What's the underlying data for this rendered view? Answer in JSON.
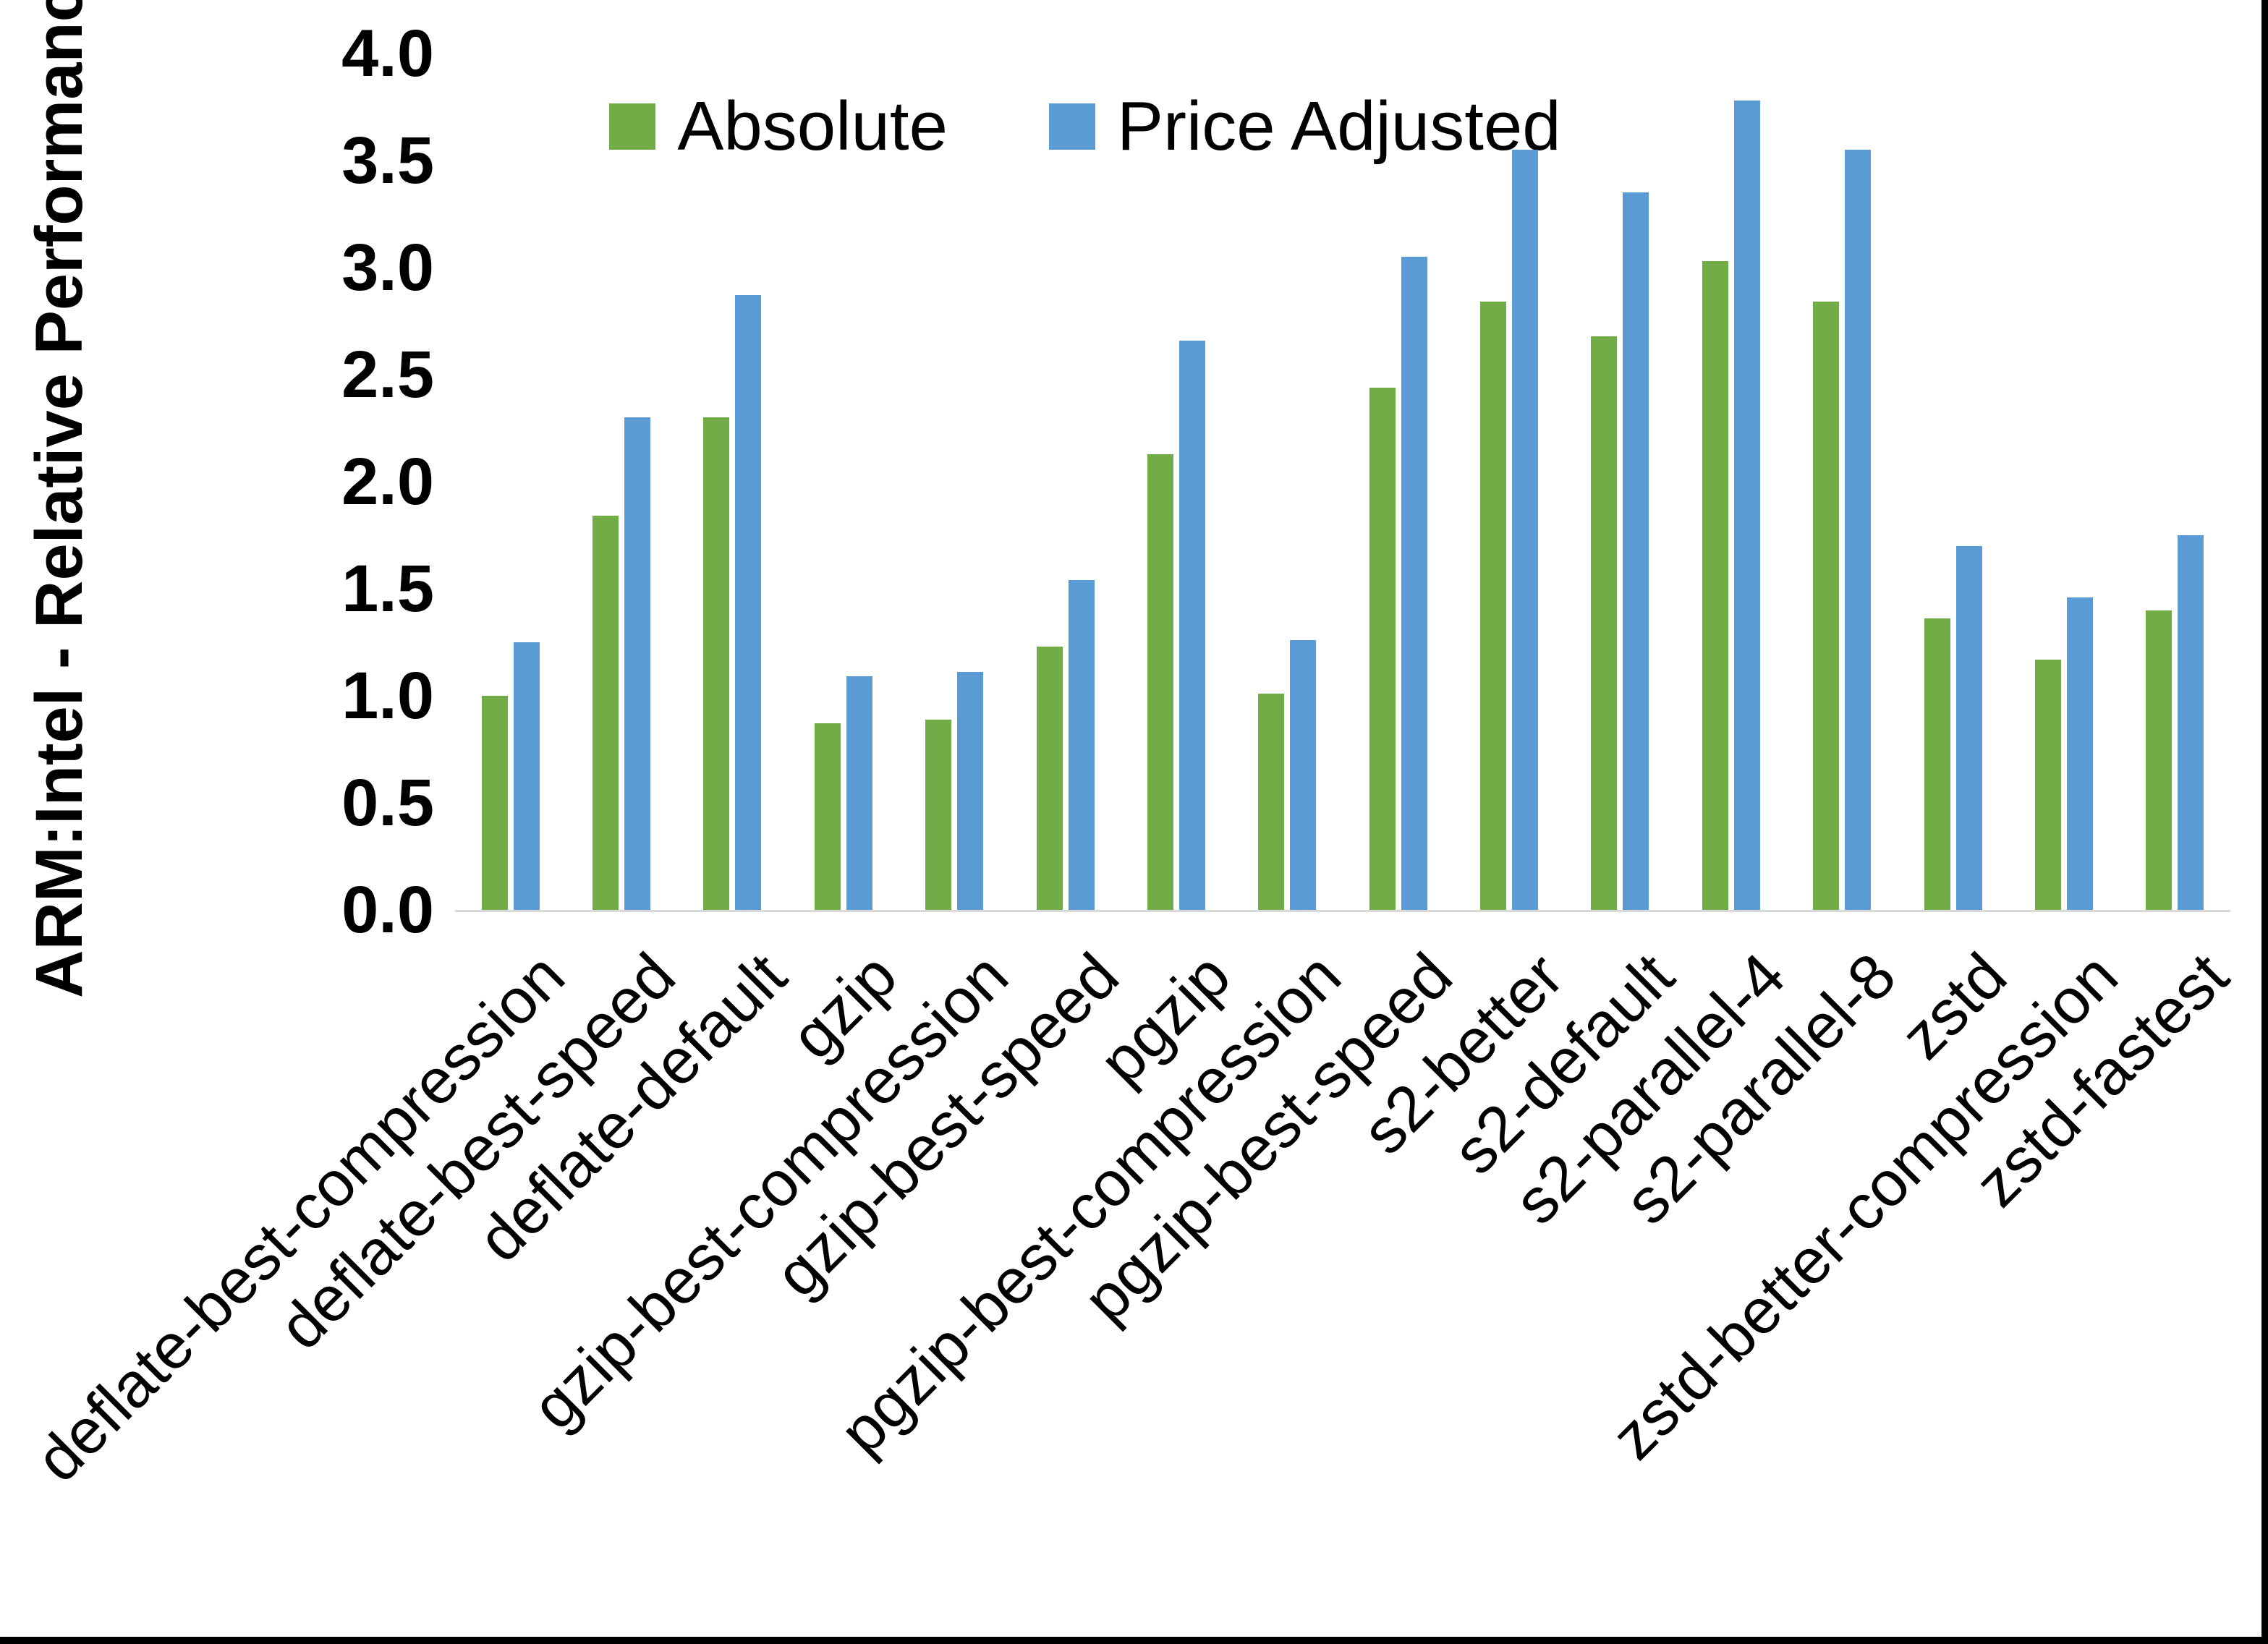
{
  "figure": {
    "background": "#ffffff",
    "border_color": "#000000"
  },
  "y_axis": {
    "title": "ARM:Intel - Relative Performance",
    "tick_labels": [
      "0.0",
      "0.5",
      "1.0",
      "1.5",
      "2.0",
      "2.5",
      "3.0",
      "3.5",
      "4.0"
    ],
    "min": 0.0,
    "max": 4.0,
    "step": 0.5
  },
  "legend": {
    "items": [
      {
        "label": "Absolute",
        "color": "#70AD47"
      },
      {
        "label": "Price Adjusted",
        "color": "#5B9BD5"
      }
    ]
  },
  "chart_data": {
    "type": "bar",
    "title": "",
    "xlabel": "",
    "ylabel": "ARM:Intel - Relative Performance",
    "ylim": [
      0.0,
      4.0
    ],
    "grid": false,
    "legend_position": "top-center",
    "axis_line_color": "#d9d9d9",
    "categories": [
      "deflate-best-compression",
      "deflate-best-speed",
      "deflate-default",
      "gzip",
      "gzip-best-compression",
      "gzip-best-speed",
      "pgzip",
      "pgzip-best-compression",
      "pgzip-best-speed",
      "s2-better",
      "s2-default",
      "s2-parallel-4",
      "s2-parallel-8",
      "zstd",
      "zstd-better-compression",
      "zstd-fastest"
    ],
    "series": [
      {
        "name": "Absolute",
        "color": "#70AD47",
        "values": [
          1.0,
          1.84,
          2.3,
          0.87,
          0.89,
          1.23,
          2.13,
          1.01,
          2.44,
          2.84,
          2.68,
          3.03,
          2.84,
          1.36,
          1.17,
          1.4
        ]
      },
      {
        "name": "Price Adjusted",
        "color": "#5B9BD5",
        "values": [
          1.25,
          2.3,
          2.87,
          1.09,
          1.11,
          1.54,
          2.66,
          1.26,
          3.05,
          3.55,
          3.35,
          3.78,
          3.55,
          1.7,
          1.46,
          1.75
        ]
      }
    ]
  }
}
